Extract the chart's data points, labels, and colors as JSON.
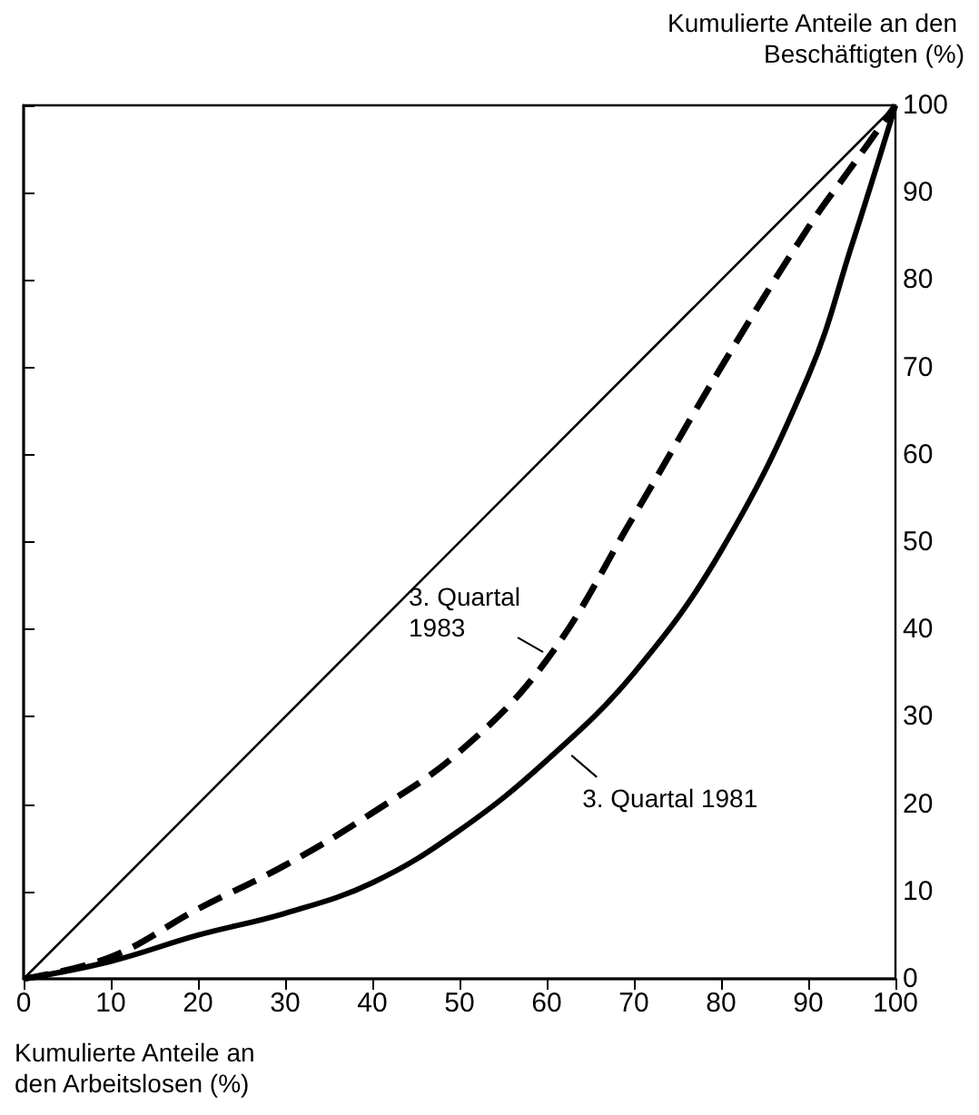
{
  "chart_data": {
    "type": "line",
    "xlabel": "Kumulierte Anteile an den Arbeitslosen (%)",
    "ylabel": "Kumulierte Anteile an den Beschäftigten (%)",
    "xlim": [
      0,
      100
    ],
    "xticks": [
      0,
      10,
      20,
      30,
      40,
      50,
      60,
      70,
      80,
      90,
      100
    ],
    "ylim": [
      0,
      100
    ],
    "yticks": [
      0,
      10,
      20,
      30,
      40,
      50,
      60,
      70,
      80,
      90,
      100
    ],
    "grid": false,
    "marker": "none",
    "series": [
      {
        "color": "#000000",
        "x": [
          0,
          100
        ],
        "values": [
          0,
          100
        ],
        "line_style": "solid"
      },
      {
        "color": "#000000",
        "x": [
          0,
          10,
          20,
          30,
          40,
          50,
          60,
          70,
          80,
          90,
          95,
          100
        ],
        "values": [
          0,
          2.5,
          8,
          13,
          19,
          26,
          36.5,
          53,
          70,
          86,
          93,
          100
        ],
        "line_style": "dashed"
      },
      {
        "color": "#000000",
        "x": [
          0,
          10,
          20,
          30,
          40,
          50,
          60,
          70,
          80,
          90,
          95,
          100
        ],
        "values": [
          0,
          2,
          5,
          7.5,
          11,
          17,
          25,
          35,
          49,
          69,
          84,
          100
        ],
        "line_style": "solid"
      }
    ],
    "annotations": [
      {
        "text": "3. Quartal 1983",
        "x": 60,
        "y": 37
      },
      {
        "text": "3. Quartal 1981",
        "x": 62,
        "y": 26
      }
    ]
  }
}
